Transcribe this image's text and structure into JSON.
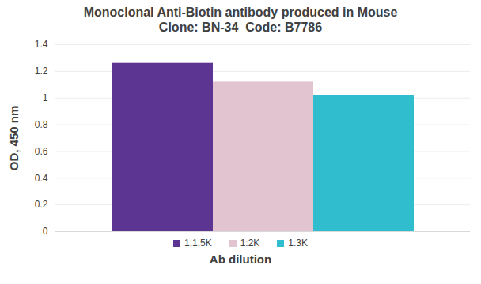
{
  "chart_data": {
    "type": "bar",
    "title": "Monoclonal Anti-Biotin antibody produced in Mouse",
    "subtitle": "Clone: BN-34  Code: B7786",
    "x_label": "Ab dilution",
    "y_label": "OD, 450 nm",
    "categories": [
      "1:1.5K",
      "1:2K",
      "1:3K"
    ],
    "values": [
      1.26,
      1.12,
      1.02
    ],
    "colors": [
      "#5c3592",
      "#e2c4d0",
      "#30bdcd"
    ],
    "ylim": [
      0,
      1.4
    ],
    "yticks": [
      0,
      0.2,
      0.4,
      0.6,
      0.8,
      1,
      1.2,
      1.4
    ],
    "grid": true,
    "legend": "bottom",
    "tick_labels": "y"
  }
}
